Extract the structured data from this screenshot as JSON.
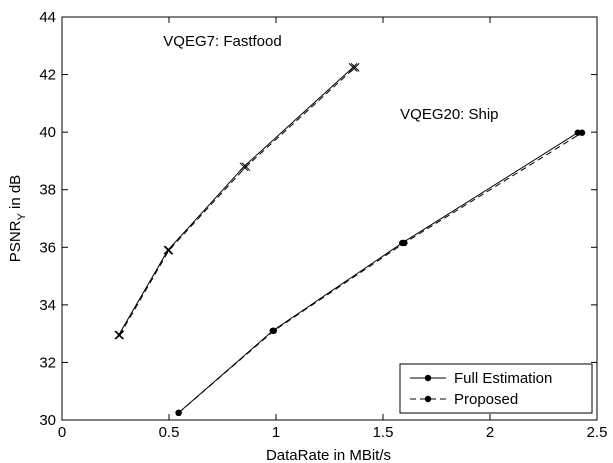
{
  "chart_data": {
    "type": "line",
    "xlabel": "DataRate in MBit/s",
    "ylabel": "PSNR",
    "ylabel_sub": "Y",
    "ylabel_suffix": " in dB",
    "xlim": [
      0,
      2.5
    ],
    "ylim": [
      30,
      44
    ],
    "xticks": [
      0,
      0.5,
      1,
      1.5,
      2,
      2.5
    ],
    "xtick_labels": [
      "0",
      "0.5",
      "1",
      "1.5",
      "2",
      "2.5"
    ],
    "yticks": [
      30,
      32,
      34,
      36,
      38,
      40,
      42,
      44
    ],
    "ytick_labels": [
      "30",
      "32",
      "34",
      "36",
      "38",
      "40",
      "42",
      "44"
    ],
    "grid": false,
    "legend_position": "bottom-right",
    "legend": [
      {
        "label": "Full Estimation",
        "linestyle": "solid"
      },
      {
        "label": "Proposed",
        "linestyle": "dashed"
      }
    ],
    "annotations": [
      {
        "text": "VQEG7: Fastfood",
        "x": 0.75,
        "y": 43.0
      },
      {
        "text": "VQEG20: Ship",
        "x": 1.81,
        "y": 40.45
      }
    ],
    "series": [
      {
        "group": "VQEG7: Fastfood",
        "method": "Full Estimation",
        "marker": "x",
        "linestyle": "solid",
        "x": [
          0.265,
          0.495,
          0.85,
          1.36
        ],
        "y": [
          32.95,
          35.9,
          38.8,
          42.25
        ]
      },
      {
        "group": "VQEG7: Fastfood",
        "method": "Proposed",
        "marker": "x",
        "linestyle": "dashed",
        "x": [
          0.27,
          0.5,
          0.86,
          1.37
        ],
        "y": [
          32.95,
          35.9,
          38.8,
          42.25
        ]
      },
      {
        "group": "VQEG20: Ship",
        "method": "Full Estimation",
        "marker": "dot",
        "linestyle": "solid",
        "x": [
          0.545,
          0.985,
          1.59,
          2.41
        ],
        "y": [
          30.25,
          33.1,
          36.15,
          39.98
        ]
      },
      {
        "group": "VQEG20: Ship",
        "method": "Proposed",
        "marker": "dot",
        "linestyle": "dashed",
        "x": [
          0.545,
          0.99,
          1.6,
          2.43
        ],
        "y": [
          30.25,
          33.1,
          36.15,
          39.98
        ]
      }
    ]
  }
}
